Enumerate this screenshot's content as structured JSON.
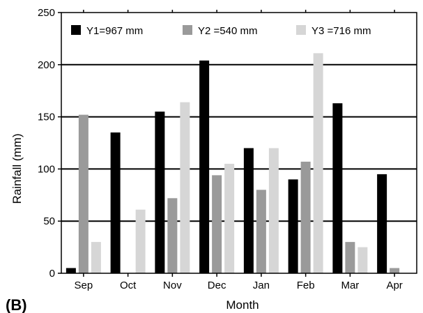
{
  "panel_label": "(B)",
  "chart_data": {
    "type": "bar",
    "xlabel": "Month",
    "ylabel": "Rainfall (mm)",
    "ylim": [
      0,
      250
    ],
    "yticks": [
      0,
      50,
      100,
      150,
      200,
      250
    ],
    "grid": "horizontal",
    "legend_position": "top",
    "categories": [
      "Sep",
      "Oct",
      "Nov",
      "Dec",
      "Jan",
      "Feb",
      "Mar",
      "Apr"
    ],
    "series": [
      {
        "name": "Y1=967 mm",
        "color": "#000000",
        "values": [
          5,
          135,
          155,
          204,
          120,
          90,
          163,
          95
        ]
      },
      {
        "name": "Y2 =540 mm",
        "color": "#9a9a9a",
        "values": [
          152,
          0,
          72,
          94,
          80,
          107,
          30,
          5
        ]
      },
      {
        "name": "Y3 =716 mm",
        "color": "#d6d6d6",
        "values": [
          30,
          61,
          164,
          105,
          120,
          211,
          25,
          0
        ]
      }
    ]
  }
}
